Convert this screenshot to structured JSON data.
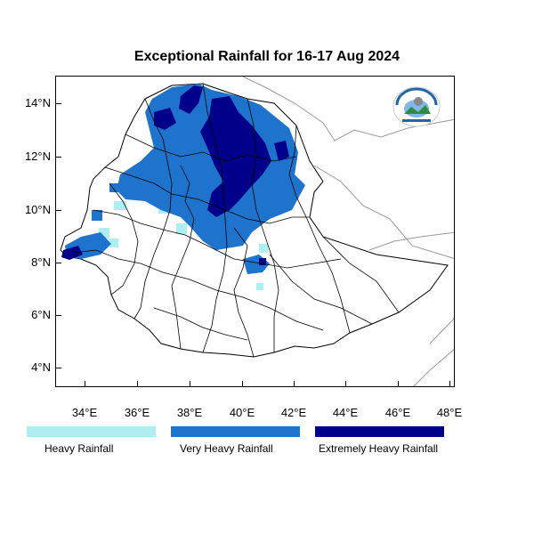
{
  "title": "Exceptional Rainfall for 16-17 Aug 2024",
  "axes": {
    "y_ticks": [
      "14°N",
      "12°N",
      "10°N",
      "8°N",
      "6°N",
      "4°N"
    ],
    "x_ticks": [
      "34°E",
      "36°E",
      "38°E",
      "40°E",
      "42°E",
      "44°E",
      "46°E",
      "48°E"
    ]
  },
  "legend": [
    {
      "label": "Heavy Rainfall",
      "color": "#aeeef0"
    },
    {
      "label": "Very Heavy Rainfall",
      "color": "#1e73cc"
    },
    {
      "label": "Extremely Heavy Rainfall",
      "color": "#00008b"
    }
  ],
  "logo": {
    "icon": "meteorology-agency-logo"
  }
}
